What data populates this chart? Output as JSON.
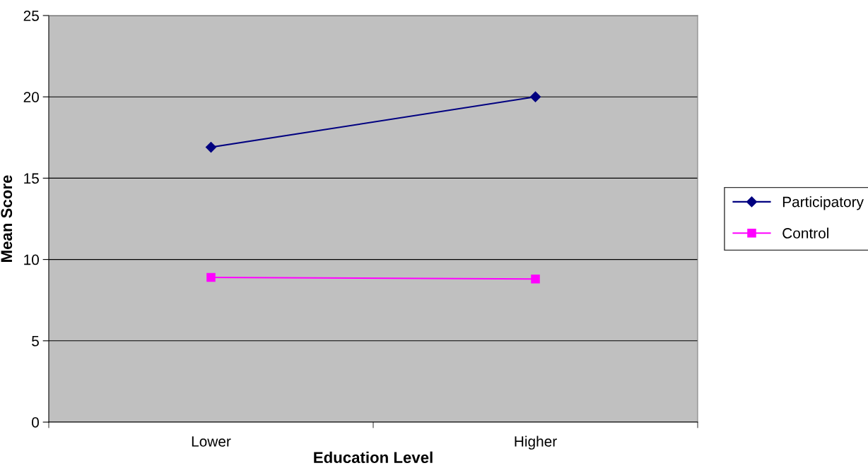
{
  "chart_data": {
    "type": "line",
    "xlabel": "Education Level",
    "ylabel": "Mean Score",
    "categories": [
      "Lower",
      "Higher"
    ],
    "series": [
      {
        "name": "Participatory",
        "color": "#000080",
        "values": [
          16.9,
          20.0
        ],
        "marker": "diamond"
      },
      {
        "name": "Control",
        "color": "#ff00ff",
        "values": [
          8.9,
          8.8
        ],
        "marker": "square"
      }
    ],
    "ylim": [
      0,
      25
    ],
    "yticks": [
      0,
      5,
      10,
      15,
      20,
      25
    ],
    "grid": "y",
    "legend": "right",
    "line_style": "solid"
  }
}
